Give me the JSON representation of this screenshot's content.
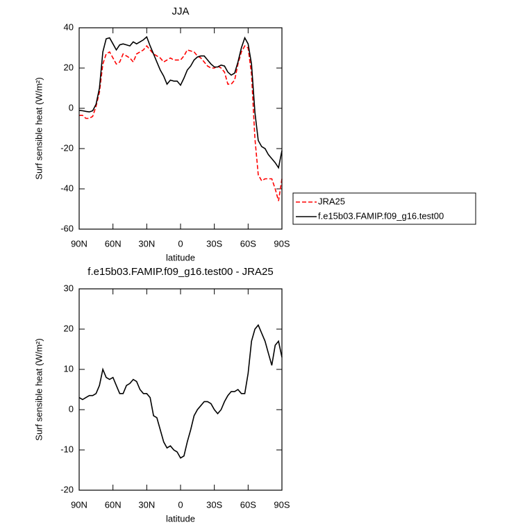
{
  "chart_data": [
    {
      "type": "line",
      "title": "JJA",
      "xlabel": "latitude",
      "ylabel": "Surf sensible heat (W/m²)",
      "x": [
        90,
        87,
        84,
        81,
        78,
        75,
        72,
        69,
        66,
        63,
        60,
        57,
        54,
        51,
        48,
        45,
        42,
        39,
        36,
        33,
        30,
        27,
        24,
        21,
        18,
        15,
        12,
        9,
        6,
        3,
        0,
        -3,
        -6,
        -9,
        -12,
        -15,
        -18,
        -21,
        -24,
        -27,
        -30,
        -33,
        -36,
        -39,
        -42,
        -45,
        -48,
        -51,
        -54,
        -57,
        -60,
        -63,
        -66,
        -69,
        -72,
        -75,
        -78,
        -81,
        -84,
        -87,
        -90
      ],
      "series": [
        {
          "name": "JRA25",
          "color": "#ff0000",
          "style": "dashed",
          "values": [
            -3.5,
            -3.5,
            -5,
            -5,
            -4,
            1,
            8,
            22,
            27,
            28,
            25,
            22,
            23,
            27,
            26,
            25,
            23,
            27,
            28,
            29,
            31,
            29,
            27,
            26,
            25,
            23,
            24,
            25,
            24,
            24,
            24,
            26,
            29,
            28.5,
            28,
            26,
            25,
            23,
            21,
            20,
            20,
            21,
            20,
            18,
            12,
            12,
            14,
            22,
            28,
            31,
            30,
            17,
            -15,
            -33,
            -36,
            -35,
            -35,
            -35,
            -40,
            -46,
            -35
          ]
        },
        {
          "name": "f.e15b03.FAMIP.f09_g16.test00",
          "color": "#000000",
          "style": "solid",
          "values": [
            -1,
            -1.2,
            -1.5,
            -1.8,
            -1.2,
            2,
            10,
            28,
            34.5,
            35,
            32,
            29,
            31.5,
            32,
            31.5,
            31,
            33,
            32,
            33,
            34,
            35.5,
            31,
            27,
            23,
            19,
            16,
            12,
            14,
            13.5,
            13.5,
            11.5,
            15,
            19,
            21,
            24,
            25.5,
            26,
            26,
            24,
            22,
            20.5,
            20.5,
            21.5,
            21,
            18,
            16.5,
            17.5,
            23,
            30,
            35,
            32,
            22,
            -2,
            -16,
            -19,
            -20,
            -23,
            -25,
            -27,
            -29.5,
            -21
          ]
        }
      ],
      "xlim": [
        90,
        -90
      ],
      "xticks": [
        {
          "value": 90,
          "label": "90N"
        },
        {
          "value": 60,
          "label": "60N"
        },
        {
          "value": 30,
          "label": "30N"
        },
        0,
        {
          "value": -30,
          "label": "30S"
        },
        {
          "value": -60,
          "label": "60S"
        },
        {
          "value": -90,
          "label": "90S"
        }
      ],
      "ylim": [
        -60,
        40
      ],
      "yticks": [
        -60,
        -40,
        -20,
        0,
        20,
        40
      ],
      "legend": "outside-right"
    },
    {
      "type": "line",
      "title": "f.e15b03.FAMIP.f09_g16.test00 - JRA25",
      "xlabel": "latitude",
      "ylabel": "Surf sensible heat (W/m²)",
      "x": [
        90,
        87,
        84,
        81,
        78,
        75,
        72,
        69,
        66,
        63,
        60,
        57,
        54,
        51,
        48,
        45,
        42,
        39,
        36,
        33,
        30,
        27,
        24,
        21,
        18,
        15,
        12,
        9,
        6,
        3,
        0,
        -3,
        -6,
        -9,
        -12,
        -15,
        -18,
        -21,
        -24,
        -27,
        -30,
        -33,
        -36,
        -39,
        -42,
        -45,
        -48,
        -51,
        -54,
        -57,
        -60,
        -63,
        -66,
        -69,
        -72,
        -75,
        -78,
        -81,
        -84,
        -87,
        -90
      ],
      "color": "#000000",
      "values": [
        3,
        2.5,
        3,
        3.5,
        3.5,
        4,
        6,
        10,
        8,
        7.5,
        8,
        6,
        4,
        4,
        6,
        6.5,
        7.5,
        7,
        5,
        4,
        4,
        3,
        -1.5,
        -2,
        -5,
        -8,
        -9.5,
        -9,
        -10,
        -10.5,
        -12,
        -11.5,
        -8,
        -5,
        -1.5,
        0,
        1,
        2,
        2,
        1.5,
        0,
        -1,
        0,
        2,
        3.5,
        4.5,
        4.5,
        5,
        4,
        4,
        9,
        17,
        20,
        21,
        19,
        17,
        14,
        11,
        16,
        17,
        13
      ],
      "xlim": [
        90,
        -90
      ],
      "xticks": [
        {
          "value": 90,
          "label": "90N"
        },
        {
          "value": 60,
          "label": "60N"
        },
        {
          "value": 30,
          "label": "30N"
        },
        0,
        {
          "value": -30,
          "label": "30S"
        },
        {
          "value": -60,
          "label": "60S"
        },
        {
          "value": -90,
          "label": "90S"
        }
      ],
      "ylim": [
        -20,
        30
      ],
      "yticks": [
        -20,
        -10,
        0,
        10,
        20,
        30
      ]
    }
  ]
}
